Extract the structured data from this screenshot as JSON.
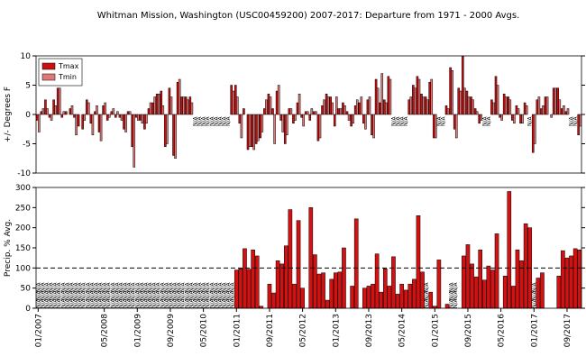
{
  "chart_data": [
    {
      "type": "bar",
      "title": "Whitman Mission, Washington (USC00459200)  2007-2017: Departure from 1971 - 2000 Avgs.",
      "y_label": "+/- Degrees F",
      "na_label": "N/A",
      "legend": "upper left",
      "ylim": [
        -10,
        10
      ],
      "yticks": [
        -10,
        -5,
        0,
        5,
        10
      ],
      "series": [
        {
          "name": "Tmax",
          "color": "#cc1010",
          "values": [
            -1,
            0.5,
            2.5,
            -0.5,
            2.5,
            4.5,
            -0.5,
            0.5,
            1,
            -0.5,
            -2,
            -2.5,
            2.5,
            -1.5,
            0.5,
            -3,
            1.5,
            -1,
            0.5,
            -0.5,
            -0.5,
            -2.5,
            0.5,
            -5.5,
            -0.5,
            -1,
            -2.5,
            1,
            2,
            3.5,
            4,
            -5.5,
            4.5,
            -7,
            5.5,
            3,
            3,
            3,
            null,
            null,
            null,
            null,
            null,
            null,
            null,
            null,
            null,
            5,
            5,
            -1.5,
            1,
            -6,
            -5.5,
            -5,
            -4,
            1,
            3.5,
            1,
            4,
            -1,
            -5,
            1,
            -1.5,
            2,
            -0.5,
            0.5,
            -1,
            0.5,
            -4.5,
            1.5,
            3.5,
            3,
            -2,
            1,
            2,
            0.5,
            -2,
            1.5,
            2,
            -1.5,
            2.5,
            -3.5,
            6,
            2,
            2.5,
            6.5,
            null,
            null,
            null,
            null,
            2.5,
            5,
            6.5,
            3.5,
            3,
            5.5,
            -4,
            null,
            null,
            1.5,
            8,
            -2.5,
            4.5,
            10,
            4,
            3,
            1,
            -1.5,
            null,
            null,
            2.5,
            6.5,
            -0.5,
            3.5,
            3,
            -1,
            1.5,
            -1.5,
            2,
            null,
            -6.5,
            2.5,
            1,
            3,
            0,
            4.5,
            4.5,
            1,
            0.5,
            null,
            null,
            -3.5
          ]
        },
        {
          "name": "Tmin",
          "color": "#e07878",
          "values": [
            -3,
            1,
            1,
            -1,
            1.5,
            4.5,
            0.5,
            0,
            1.5,
            -3.5,
            0,
            -1,
            2,
            -3.5,
            1.5,
            -4.5,
            2,
            -0.5,
            1,
            0.5,
            -1,
            -3,
            0.5,
            -9,
            -1,
            -1.5,
            -1.5,
            2,
            3,
            3.5,
            1.5,
            -5,
            3,
            -7.5,
            6,
            3,
            2.5,
            2,
            null,
            null,
            null,
            null,
            null,
            null,
            null,
            null,
            null,
            4,
            3,
            -4,
            0,
            -5.5,
            -6,
            -4.5,
            -3,
            2.5,
            3,
            -5,
            5,
            -3,
            -3.5,
            1,
            -1,
            3.5,
            -2,
            0.5,
            1,
            0.5,
            -4,
            2.5,
            3,
            2,
            3,
            1,
            1.5,
            -1,
            -1.5,
            2.5,
            3,
            -2.5,
            3,
            -4,
            4.5,
            7,
            2,
            6,
            null,
            null,
            null,
            null,
            3,
            4.5,
            6,
            3,
            2.5,
            6,
            -4,
            null,
            null,
            1,
            7.5,
            -4,
            4,
            4.5,
            3,
            2.5,
            0.5,
            -1,
            null,
            null,
            2,
            5,
            -1,
            3,
            2.5,
            -1.5,
            1,
            -1.5,
            1.5,
            null,
            -5,
            3,
            1.5,
            3,
            -0.5,
            4.5,
            2.5,
            1.5,
            1,
            null,
            null,
            -2
          ]
        }
      ]
    },
    {
      "type": "bar",
      "y_label": "Precip. % Avg.",
      "na_label": "N/A",
      "color": "#d41010",
      "ref_line": 100,
      "ylim": [
        0,
        300
      ],
      "yticks": [
        0,
        50,
        100,
        150,
        200,
        250,
        300
      ],
      "categories": [
        "01/2007",
        null,
        null,
        null,
        null,
        null,
        null,
        null,
        null,
        null,
        null,
        null,
        null,
        null,
        null,
        null,
        "05/2008",
        null,
        null,
        null,
        null,
        null,
        null,
        null,
        "01/2009",
        null,
        null,
        null,
        null,
        null,
        null,
        null,
        "09/2009",
        null,
        null,
        null,
        null,
        null,
        null,
        null,
        "05/2010",
        null,
        null,
        null,
        null,
        null,
        null,
        null,
        "01/2011",
        null,
        null,
        null,
        null,
        null,
        null,
        null,
        "09/2011",
        null,
        null,
        null,
        null,
        null,
        null,
        null,
        "05/2012",
        null,
        null,
        null,
        null,
        null,
        null,
        null,
        "01/2013",
        null,
        null,
        null,
        null,
        null,
        null,
        null,
        "09/2013",
        null,
        null,
        null,
        null,
        null,
        null,
        null,
        "05/2014",
        null,
        null,
        null,
        null,
        null,
        null,
        null,
        "01/2015",
        null,
        null,
        null,
        null,
        null,
        null,
        null,
        "09/2015",
        null,
        null,
        null,
        null,
        null,
        null,
        null,
        "05/2016",
        null,
        null,
        null,
        null,
        null,
        null,
        null,
        "01/2017",
        null,
        null,
        null,
        null,
        null,
        null,
        null,
        "09/2017",
        null,
        null,
        null
      ],
      "values": [
        null,
        null,
        null,
        null,
        null,
        null,
        null,
        null,
        null,
        null,
        null,
        null,
        null,
        null,
        null,
        null,
        null,
        null,
        null,
        null,
        null,
        null,
        null,
        null,
        null,
        null,
        null,
        null,
        null,
        null,
        null,
        null,
        null,
        null,
        null,
        null,
        null,
        null,
        null,
        null,
        null,
        null,
        null,
        null,
        null,
        null,
        null,
        null,
        95,
        98,
        148,
        97,
        145,
        130,
        5,
        0,
        60,
        38,
        118,
        110,
        155,
        245,
        60,
        218,
        50,
        0,
        250,
        133,
        85,
        88,
        20,
        72,
        88,
        90,
        150,
        0,
        55,
        222,
        0,
        50,
        55,
        60,
        135,
        40,
        98,
        55,
        128,
        35,
        60,
        45,
        60,
        72,
        230,
        90,
        null,
        40,
        5,
        120,
        0,
        10,
        null,
        null,
        0,
        130,
        158,
        110,
        78,
        145,
        70,
        105,
        95,
        185,
        0,
        80,
        290,
        55,
        145,
        118,
        210,
        200,
        null,
        75,
        88,
        0,
        0,
        0,
        80,
        143,
        125,
        130,
        148,
        145
      ]
    }
  ]
}
